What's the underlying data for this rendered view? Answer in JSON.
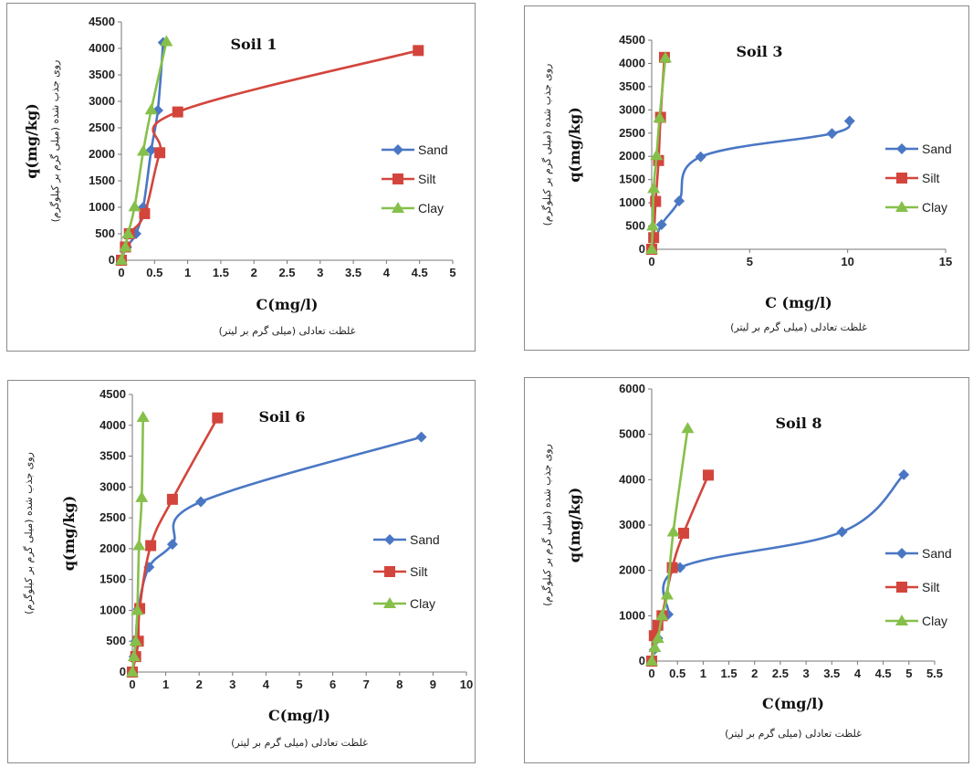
{
  "colors": {
    "Sand": "#4a77c4",
    "Silt": "#d3453c",
    "Clay": "#86c04a"
  },
  "chart_data": [
    {
      "type": "line",
      "title": "Soil 1",
      "xlabel": "C(mg/l)",
      "xlabel_fa": "غلظت تعادلی (میلی گرم بر لیتر)",
      "ylabel": "q(mg/kg)",
      "ylabel_fa": "روی جذب شده (میلی گرم بر کیلوگرم)",
      "xlim": [
        0,
        5
      ],
      "xticks": [
        "0",
        "0.5",
        "1",
        "1.5",
        "2",
        "2.5",
        "3",
        "3.5",
        "4",
        "4.5",
        "5"
      ],
      "ylim": [
        0,
        4500
      ],
      "yticks": [
        "0",
        "500",
        "1000",
        "1500",
        "2000",
        "2500",
        "3000",
        "3500",
        "4000",
        "4500"
      ],
      "legend": "right",
      "series": [
        {
          "name": "Sand",
          "x": [
            0,
            0.08,
            0.22,
            0.33,
            0.45,
            0.55,
            0.63
          ],
          "y": [
            0,
            250,
            500,
            1000,
            2080,
            2830,
            4110
          ]
        },
        {
          "name": "Silt",
          "x": [
            0,
            0.06,
            0.12,
            0.35,
            0.58,
            0.85,
            4.48
          ],
          "y": [
            0,
            250,
            500,
            880,
            2030,
            2800,
            3960
          ]
        },
        {
          "name": "Clay",
          "x": [
            0,
            0.06,
            0.1,
            0.2,
            0.33,
            0.45,
            0.68
          ],
          "y": [
            0,
            250,
            500,
            1010,
            2060,
            2840,
            4130
          ]
        }
      ]
    },
    {
      "type": "line",
      "title": "Soil 3",
      "xlabel": "C (mg/l)",
      "xlabel_fa": "غلظت تعادلی (میلی گرم بر لیتر)",
      "ylabel": "q(mg/kg)",
      "ylabel_fa": "روی جذب شده (میلی گرم بر کیلوگرم)",
      "xlim": [
        0,
        15
      ],
      "xticks": [
        "0",
        "5",
        "10",
        "15"
      ],
      "ylim": [
        0,
        4500
      ],
      "yticks": [
        "0",
        "500",
        "1000",
        "1500",
        "2000",
        "2500",
        "3000",
        "3500",
        "4000",
        "4500"
      ],
      "legend": "right",
      "series": [
        {
          "name": "Sand",
          "x": [
            0,
            0.5,
            1.4,
            2.5,
            9.2,
            10.1
          ],
          "y": [
            0,
            530,
            1040,
            1990,
            2490,
            2760
          ]
        },
        {
          "name": "Silt",
          "x": [
            0,
            0.1,
            0.2,
            0.35,
            0.45,
            0.65
          ],
          "y": [
            0,
            250,
            1030,
            1910,
            2840,
            4130
          ]
        },
        {
          "name": "Clay",
          "x": [
            0,
            0.05,
            0.1,
            0.25,
            0.4,
            0.7
          ],
          "y": [
            0,
            500,
            1310,
            2020,
            2830,
            4120
          ]
        }
      ]
    },
    {
      "type": "line",
      "title": "Soil 6",
      "xlabel": "C(mg/l)",
      "xlabel_fa": "غلظت تعادلی (میلی گرم بر لیتر)",
      "ylabel": "q(mg/kg)",
      "ylabel_fa": "روی جذب شده (میلی گرم بر کیلوگرم)",
      "xlim": [
        0,
        10
      ],
      "xticks": [
        "0",
        "1",
        "2",
        "3",
        "4",
        "5",
        "6",
        "7",
        "8",
        "9",
        "10"
      ],
      "ylim": [
        0,
        4500
      ],
      "yticks": [
        "0",
        "500",
        "1000",
        "1500",
        "2000",
        "2500",
        "3000",
        "3500",
        "4000",
        "4500"
      ],
      "legend": "right",
      "series": [
        {
          "name": "Sand",
          "x": [
            0,
            0.05,
            0.1,
            0.18,
            0.5,
            1.2,
            2.05,
            8.65
          ],
          "y": [
            0,
            250,
            500,
            1020,
            1700,
            2070,
            2760,
            3810
          ]
        },
        {
          "name": "Silt",
          "x": [
            0,
            0.1,
            0.18,
            0.22,
            0.55,
            1.2,
            2.55
          ],
          "y": [
            0,
            250,
            500,
            1030,
            2050,
            2800,
            4120
          ]
        },
        {
          "name": "Clay",
          "x": [
            0,
            0.05,
            0.1,
            0.15,
            0.2,
            0.28,
            0.32
          ],
          "y": [
            0,
            250,
            500,
            1000,
            2050,
            2830,
            4130
          ]
        }
      ]
    },
    {
      "type": "line",
      "title": "Soil 8",
      "xlabel": "C(mg/l)",
      "xlabel_fa": "غلظت تعادلی (میلی گرم بر لیتر)",
      "ylabel": "q(mg/kg)",
      "ylabel_fa": "روی جذب شده (میلی گرم بر کیلوگرم)",
      "xlim": [
        0,
        5.5
      ],
      "xticks": [
        "0",
        "0.5",
        "1",
        "1.5",
        "2",
        "2.5",
        "3",
        "3.5",
        "4",
        "4.5",
        "5",
        "5.5"
      ],
      "ylim": [
        0,
        6000
      ],
      "yticks": [
        "0",
        "1000",
        "2000",
        "3000",
        "4000",
        "5000",
        "6000"
      ],
      "legend": "right",
      "series": [
        {
          "name": "Sand",
          "x": [
            0,
            0.05,
            0.12,
            0.22,
            0.32,
            0.55,
            3.7,
            4.9
          ],
          "y": [
            0,
            250,
            500,
            1000,
            1030,
            2060,
            2850,
            4110
          ]
        },
        {
          "name": "Silt",
          "x": [
            0,
            0.05,
            0.12,
            0.2,
            0.4,
            0.62,
            1.1
          ],
          "y": [
            0,
            560,
            790,
            1000,
            2060,
            2820,
            4100
          ]
        },
        {
          "name": "Clay",
          "x": [
            0,
            0.06,
            0.12,
            0.2,
            0.3,
            0.42,
            0.7
          ],
          "y": [
            0,
            300,
            500,
            1000,
            1460,
            2850,
            5130
          ]
        }
      ]
    }
  ]
}
